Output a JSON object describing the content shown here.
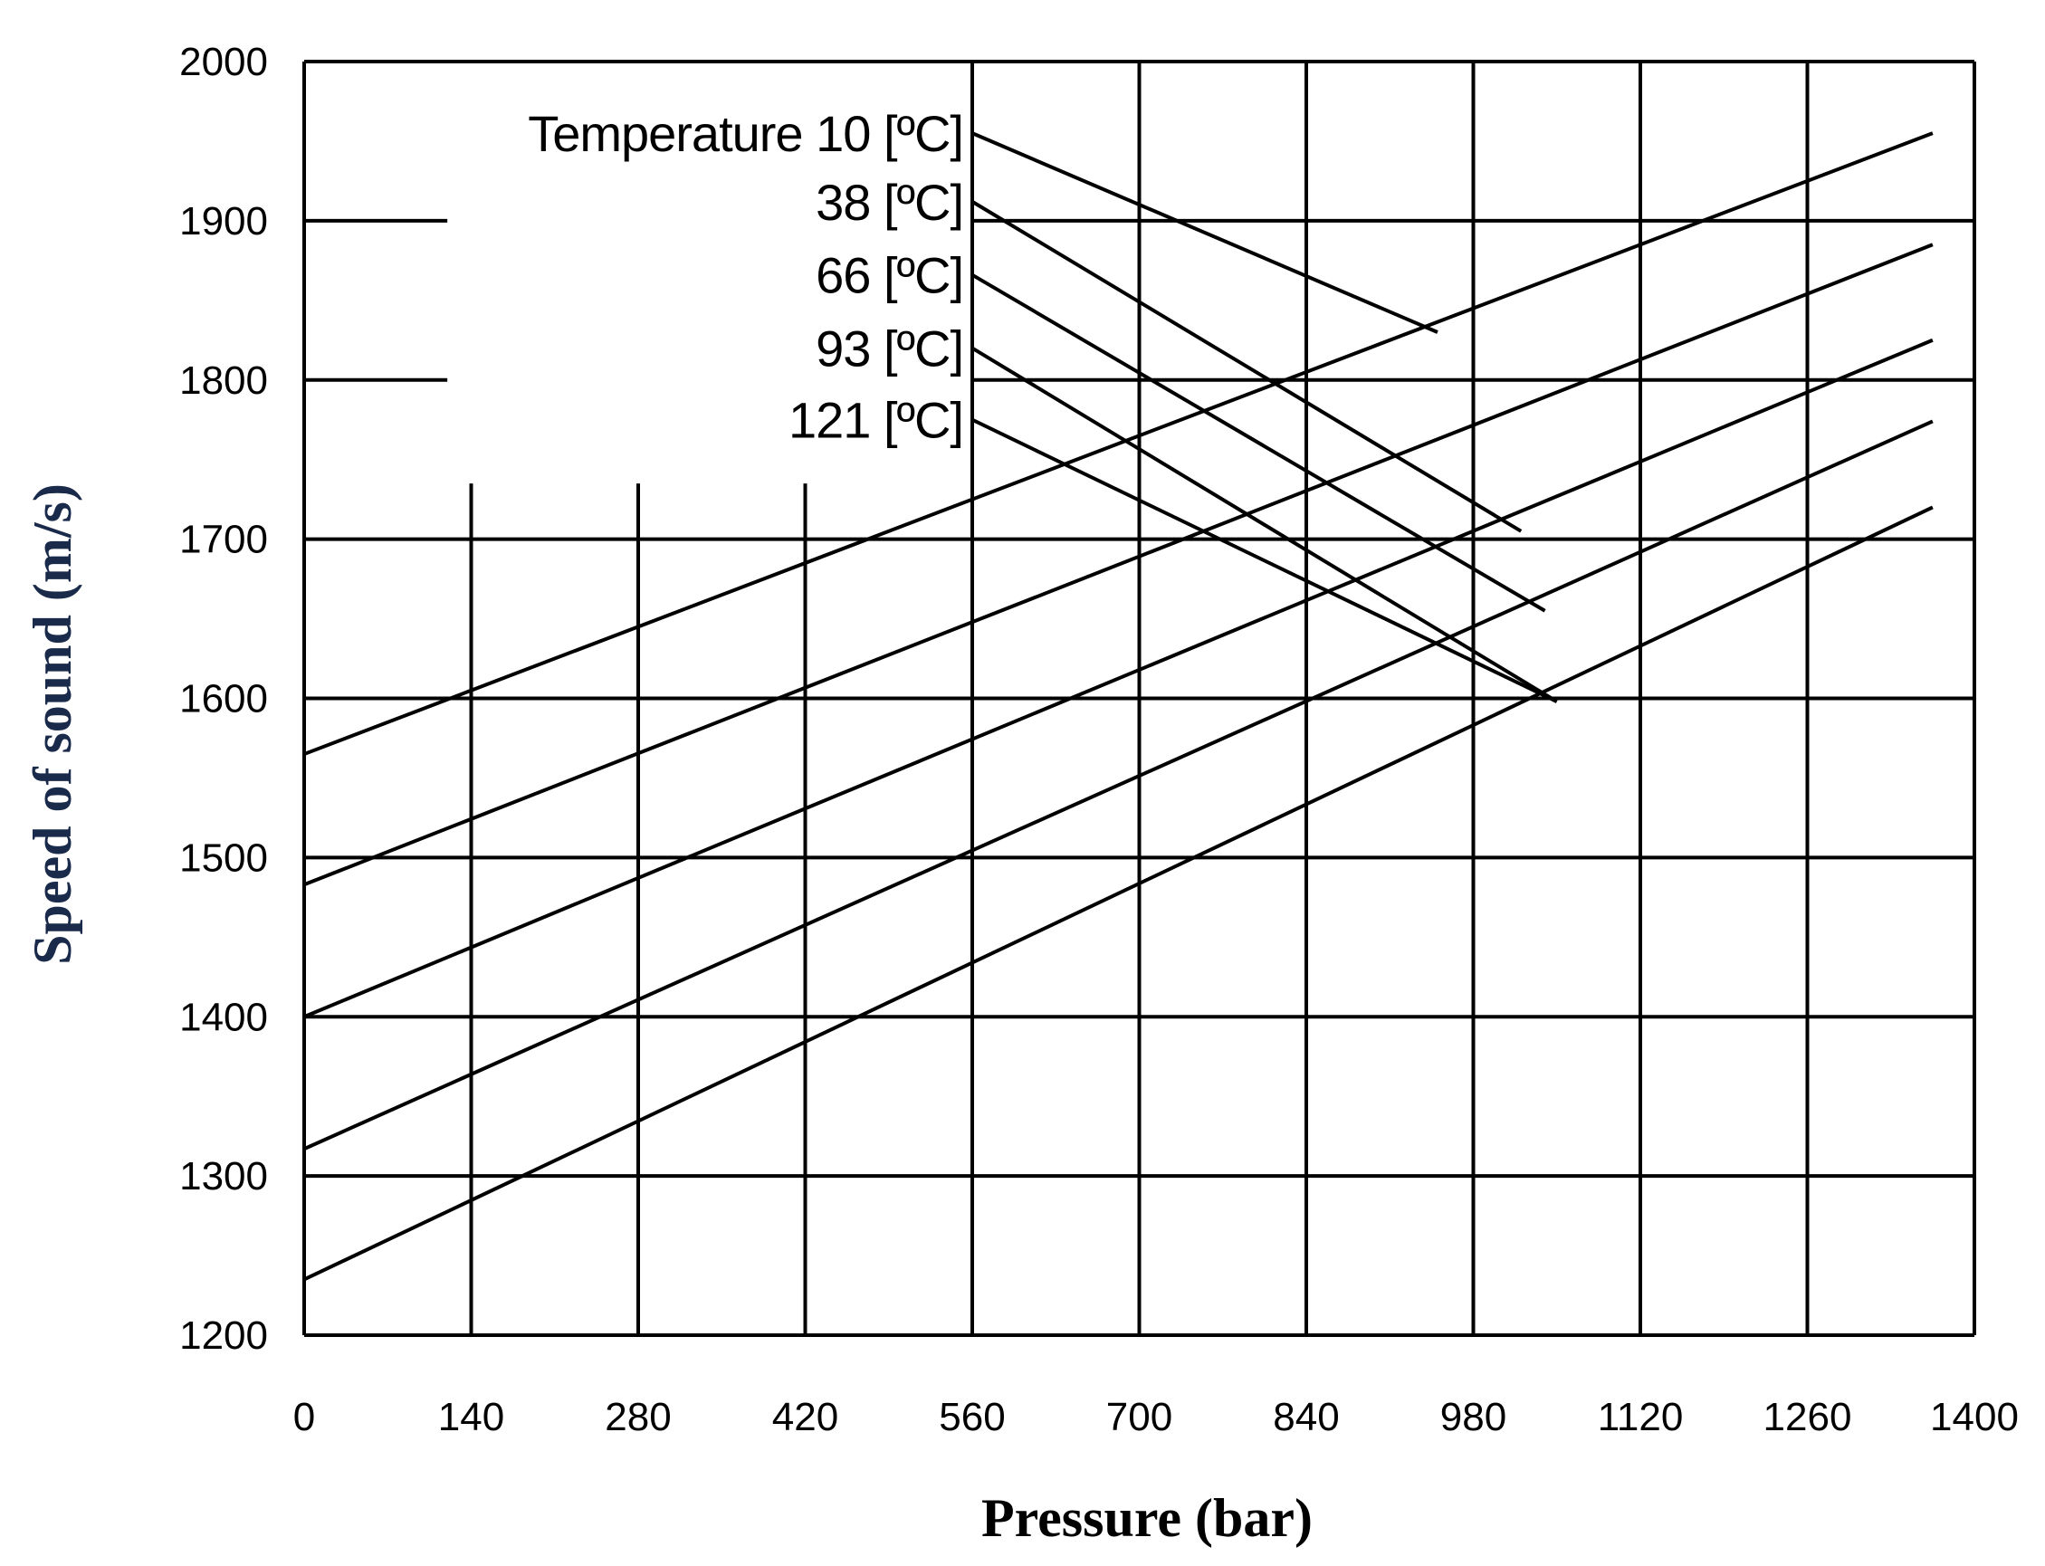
{
  "chart_data": {
    "type": "line",
    "title": "",
    "xlabel": "Pressure (bar)",
    "ylabel": "Speed of sound (m/s)",
    "xlim": [
      0,
      1400
    ],
    "ylim": [
      1200,
      2000
    ],
    "xticks": [
      "0",
      "140",
      "280",
      "420",
      "560",
      "700",
      "840",
      "980",
      "1120",
      "1260",
      "1400"
    ],
    "yticks": [
      "1200",
      "1300",
      "1400",
      "1500",
      "1600",
      "1700",
      "1800",
      "1900",
      "2000"
    ],
    "grid": true,
    "series_pressure_lines": [
      {
        "name": "10",
        "x": [
          0,
          1365
        ],
        "y": [
          1565,
          1955
        ]
      },
      {
        "name": "38",
        "x": [
          0,
          1365
        ],
        "y": [
          1483,
          1885
        ]
      },
      {
        "name": "66",
        "x": [
          0,
          1365
        ],
        "y": [
          1400,
          1825
        ]
      },
      {
        "name": "93",
        "x": [
          0,
          1365
        ],
        "y": [
          1317,
          1774
        ]
      },
      {
        "name": "121",
        "x": [
          0,
          1365
        ],
        "y": [
          1235,
          1720
        ]
      }
    ],
    "series_temperature_lines": [
      {
        "name": "Temperature 10 [ºC]",
        "x": [
          560,
          950
        ],
        "y": [
          1955,
          1830
        ]
      },
      {
        "name": "38 [ºC]",
        "x": [
          560,
          1020
        ],
        "y": [
          1912,
          1705
        ]
      },
      {
        "name": "66 [ºC]",
        "x": [
          560,
          1040
        ],
        "y": [
          1866,
          1655
        ]
      },
      {
        "name": "93 [ºC]",
        "x": [
          560,
          1050
        ],
        "y": [
          1820,
          1598
        ]
      },
      {
        "name": "121 [ºC]",
        "x": [
          560,
          1050
        ],
        "y": [
          1775,
          1598
        ]
      }
    ]
  }
}
